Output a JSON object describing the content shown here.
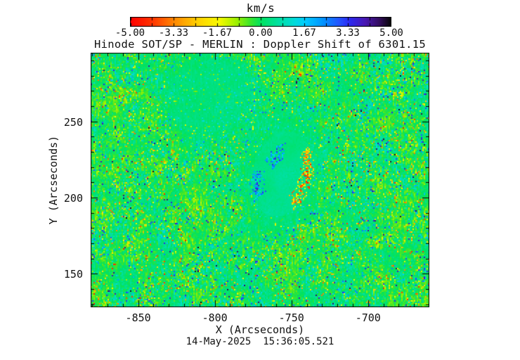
{
  "figure": {
    "title": "Hinode SOT/SP - MERLIN : Doppler Shift of 6301.15",
    "timestamp": "14-May-2025  15:36:05.521"
  },
  "colorbar": {
    "title": "km/s",
    "tick_labels": [
      "-5.00",
      "-3.33",
      "-1.67",
      "0.00",
      "1.67",
      "3.33",
      "5.00"
    ]
  },
  "axes": {
    "x_label": "X (Arcseconds)",
    "y_label": "Y (Arcseconds)"
  },
  "chart_data": {
    "type": "heatmap",
    "title": "Hinode SOT/SP - MERLIN : Doppler Shift of 6301.15",
    "xlabel": "X (Arcseconds)",
    "ylabel": "Y (Arcseconds)",
    "xlim": [
      -881,
      -660
    ],
    "ylim": [
      128,
      295
    ],
    "x_ticks": [
      -850,
      -800,
      -750,
      -700
    ],
    "y_ticks": [
      250,
      200,
      150
    ],
    "minor_tick_step_arcsec": 10,
    "value_units": "km/s",
    "value_range": [
      -5.0,
      5.0
    ],
    "colorbar_ticks": [
      -5.0,
      -3.33,
      -1.67,
      0.0,
      1.67,
      3.33,
      5.0
    ],
    "colormap_stops": [
      [
        0.0,
        "#ff0000"
      ],
      [
        0.09,
        "#ff3a00"
      ],
      [
        0.17,
        "#ff8a00"
      ],
      [
        0.26,
        "#ffd200"
      ],
      [
        0.34,
        "#f8fa00"
      ],
      [
        0.41,
        "#9af000"
      ],
      [
        0.46,
        "#3ce62c"
      ],
      [
        0.5,
        "#00e25f"
      ],
      [
        0.57,
        "#00e0a4"
      ],
      [
        0.63,
        "#00dbdb"
      ],
      [
        0.67,
        "#00ccff"
      ],
      [
        0.74,
        "#0092ff"
      ],
      [
        0.8,
        "#2355ff"
      ],
      [
        0.84,
        "#2b2af2"
      ],
      [
        0.9,
        "#4a18b4"
      ],
      [
        0.955,
        "#330e5e"
      ],
      [
        1.0,
        "#050505"
      ]
    ],
    "timestamp": "14-May-2025  15:36:05.521",
    "content_summary": "Noisy solar Doppler-velocity map: near-zero (green) background with +/-1 to 5 km/s speckles aligned in diagonal streaks; a smooth elliptical sunspot region near (-758, 215) arcsec shows a redshifted (yellow/orange/red) arc on its right rim and blueshifted (blue) patches on its interior-left and lower-left rim; a second quieter pale patch sits near (-810, 270) arcsec.",
    "feature": {
      "center_arcsec": [
        -758,
        215
      ],
      "semi_axes_arcsec": [
        18,
        28
      ],
      "tilt_deg": -15,
      "right_rim_shift_kms": [
        -1,
        -5
      ],
      "left_rim_shift_kms": [
        1.5,
        4
      ]
    }
  }
}
